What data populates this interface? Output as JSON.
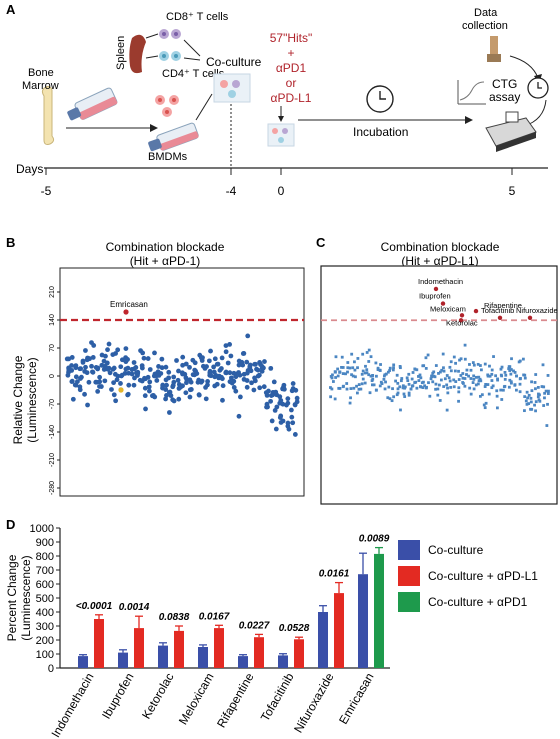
{
  "panels": {
    "A": {
      "label": "A",
      "bone_marrow": "Bone\nMarrow",
      "spleen": "Spleen",
      "cd8": "CD8⁺ T cells",
      "cd4": "CD4⁺ T cells",
      "coculture": "Co-culture",
      "bmdms": "BMDMs",
      "hits_lines": [
        "57\"Hits\"",
        "+",
        "αPD1",
        "or",
        "αPD-L1"
      ],
      "incubation": "Incubation",
      "data_collection": "Data\ncollection",
      "ctg_assay": "CTG\nassay",
      "days_label": "Days",
      "day_ticks": [
        "-5",
        "-4",
        "0",
        "5"
      ]
    },
    "B": {
      "label": "B",
      "title": "Combination blockade",
      "subtitle": "(Hit + αPD-1)",
      "ylabel_1": "Relative Change",
      "ylabel_2": "(Luminescence)",
      "annotation": "Emricasan"
    },
    "C": {
      "label": "C",
      "title": "Combination blockade",
      "subtitle": "(Hit + αPD-L1)",
      "annotations": [
        "Indomethacin",
        "Ibuprofen",
        "Rifapentine",
        "Meloxicam",
        "Ketorolac",
        "Tofacitinib",
        "Nifuroxazide"
      ]
    },
    "D": {
      "label": "D",
      "ylabel_1": "Percent Change",
      "ylabel_2": "(Luminescence)",
      "legend": [
        "Co-culture",
        "Co-culture + αPD-L1",
        "Co-culture + αPD1"
      ]
    }
  },
  "chart_data": [
    {
      "id": "B",
      "type": "scatter",
      "title": "Combination blockade",
      "subtitle": "(Hit + αPD-1)",
      "ylabel": "Relative Change (Luminescence)",
      "yticks": [
        -280,
        -210,
        -140,
        -70,
        0,
        70,
        140,
        210
      ],
      "ylim": [
        -300,
        270
      ],
      "threshold": 140,
      "points_note_color": "#2d5fa6",
      "highlight": {
        "name": "Emricasan",
        "value": 160
      },
      "yellow_point": -35
    },
    {
      "id": "C",
      "type": "scatter",
      "title": "Combination blockade",
      "subtitle": "(Hit + αPD-L1)",
      "ylim": [
        -300,
        270
      ],
      "threshold": 140,
      "highlights": [
        {
          "name": "Indomethacin",
          "value": 215
        },
        {
          "name": "Ibuprofen",
          "value": 180
        },
        {
          "name": "Rifapentine",
          "value": 162
        },
        {
          "name": "Meloxicam",
          "value": 152
        },
        {
          "name": "Ketorolac",
          "value": 140
        },
        {
          "name": "Tofacitinib",
          "value": 146
        },
        {
          "name": "Nifuroxazide",
          "value": 146
        }
      ]
    },
    {
      "id": "D",
      "type": "bar",
      "ylabel": "Percent Change (Luminescence)",
      "ylim": [
        0,
        1000
      ],
      "yticks": [
        0,
        100,
        200,
        300,
        400,
        500,
        600,
        700,
        800,
        900,
        1000
      ],
      "categories": [
        "Indomethacin",
        "Ibuprofen",
        "Ketorolac",
        "Meloxicam",
        "Rifapentine",
        "Tofacitinib",
        "Nifuroxazide",
        "Emricasan"
      ],
      "series": [
        {
          "name": "Co-culture",
          "color": "#3a4fa8",
          "values": [
            85,
            110,
            160,
            150,
            85,
            90,
            400,
            670
          ],
          "errors": [
            10,
            20,
            20,
            15,
            10,
            12,
            45,
            150
          ]
        },
        {
          "name": "Co-culture + αPD-L1",
          "color": "#e32a22",
          "values": [
            350,
            285,
            265,
            285,
            220,
            205,
            535,
            null
          ],
          "errors": [
            30,
            85,
            35,
            20,
            20,
            15,
            75,
            null
          ]
        },
        {
          "name": "Co-culture + αPD1",
          "color": "#1e9a4c",
          "values": [
            null,
            null,
            null,
            null,
            null,
            null,
            null,
            815
          ],
          "errors": [
            null,
            null,
            null,
            null,
            null,
            null,
            null,
            45
          ]
        }
      ],
      "pvalues": [
        "<0.0001",
        "0.0014",
        "0.0838",
        "0.0167",
        "0.0227",
        "0.0528",
        "0.0161",
        "0.0089"
      ]
    }
  ]
}
